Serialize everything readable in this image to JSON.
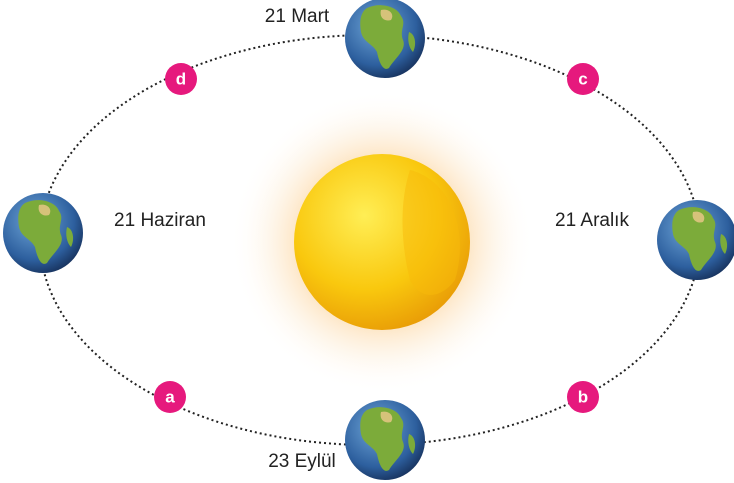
{
  "dates": [
    "21 Mart",
    "21 Haziran",
    "21 Aralık",
    "23 Eylül"
  ],
  "markers": [
    "a",
    "b",
    "c",
    "d"
  ]
}
